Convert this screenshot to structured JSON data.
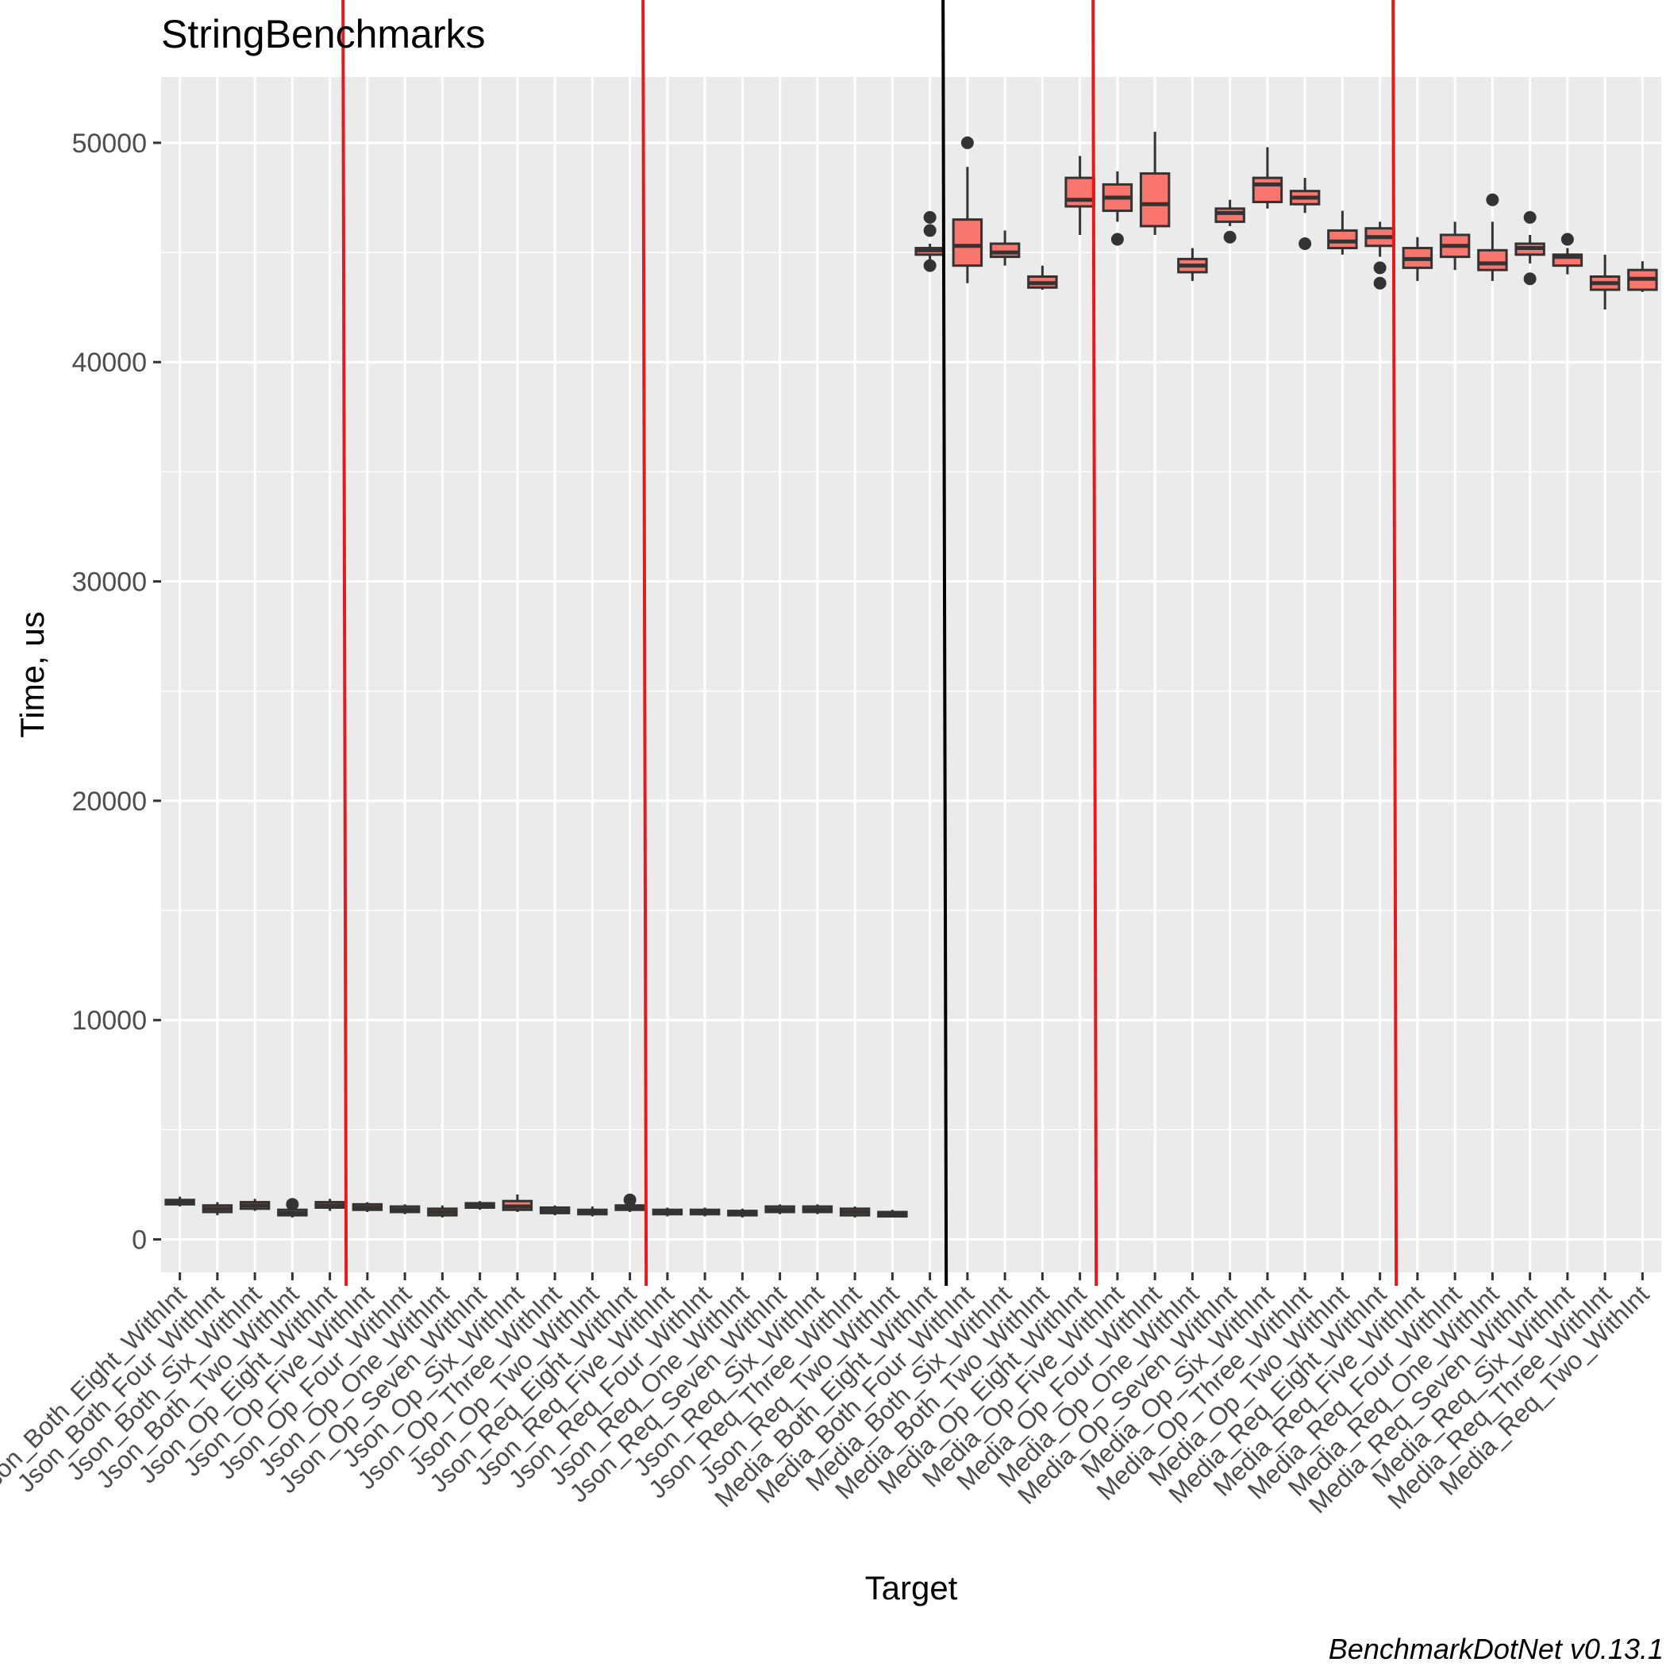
{
  "chart_data": {
    "type": "boxplot",
    "title": "StringBenchmarks",
    "xlabel": "Target",
    "ylabel": "Time, us",
    "caption": "BenchmarkDotNet v0.13.1",
    "ylim": [
      -1500,
      53000
    ],
    "yticks": [
      0,
      10000,
      20000,
      30000,
      40000,
      50000
    ],
    "grid": true,
    "legend": "none",
    "colors": {
      "panel": "#ebebeb",
      "grid": "#ffffff",
      "box_fill": "#f8766d",
      "box_line": "#333333",
      "annotation_red": "#e41a1c",
      "annotation_black": "#000000"
    },
    "categories": [
      "Json_Both_Eight_WithInt",
      "Json_Both_Four_WithInt",
      "Json_Both_Six_WithInt",
      "Json_Both_Two_WithInt",
      "Json_Op_Eight_WithInt",
      "Json_Op_Five_WithInt",
      "Json_Op_Four_WithInt",
      "Json_Op_One_WithInt",
      "Json_Op_Seven_WithInt",
      "Json_Op_Six_WithInt",
      "Json_Op_Three_WithInt",
      "Json_Op_Two_WithInt",
      "Json_Req_Eight_WithInt",
      "Json_Req_Five_WithInt",
      "Json_Req_Four_WithInt",
      "Json_Req_One_WithInt",
      "Json_Req_Seven_WithInt",
      "Json_Req_Six_WithInt",
      "Json_Req_Three_WithInt",
      "Json_Req_Two_WithInt",
      "Media_Both_Eight_WithInt",
      "Media_Both_Four_WithInt",
      "Media_Both_Six_WithInt",
      "Media_Both_Two_WithInt",
      "Media_Op_Eight_WithInt",
      "Media_Op_Five_WithInt",
      "Media_Op_Four_WithInt",
      "Media_Op_One_WithInt",
      "Media_Op_Seven_WithInt",
      "Media_Op_Six_WithInt",
      "Media_Op_Three_WithInt",
      "Media_Op_Two_WithInt",
      "Media_Req_Eight_WithInt",
      "Media_Req_Five_WithInt",
      "Media_Req_Four_WithInt",
      "Media_Req_One_WithInt",
      "Media_Req_Seven_WithInt",
      "Media_Req_Six_WithInt",
      "Media_Req_Three_WithInt",
      "Media_Req_Two_WithInt"
    ],
    "boxes": [
      {
        "min": 1500,
        "q1": 1600,
        "median": 1700,
        "q3": 1800,
        "max": 1950,
        "outliers": []
      },
      {
        "min": 1100,
        "q1": 1250,
        "median": 1400,
        "q3": 1550,
        "max": 1700,
        "outliers": []
      },
      {
        "min": 1300,
        "q1": 1400,
        "median": 1550,
        "q3": 1700,
        "max": 1850,
        "outliers": []
      },
      {
        "min": 1000,
        "q1": 1100,
        "median": 1200,
        "q3": 1350,
        "max": 1450,
        "outliers": [
          1600
        ]
      },
      {
        "min": 1300,
        "q1": 1450,
        "median": 1550,
        "q3": 1700,
        "max": 1850,
        "outliers": []
      },
      {
        "min": 1250,
        "q1": 1350,
        "median": 1450,
        "q3": 1600,
        "max": 1700,
        "outliers": []
      },
      {
        "min": 1150,
        "q1": 1250,
        "median": 1350,
        "q3": 1500,
        "max": 1600,
        "outliers": []
      },
      {
        "min": 1000,
        "q1": 1100,
        "median": 1250,
        "q3": 1400,
        "max": 1550,
        "outliers": []
      },
      {
        "min": 1350,
        "q1": 1450,
        "median": 1550,
        "q3": 1650,
        "max": 1750,
        "outliers": []
      },
      {
        "min": 1250,
        "q1": 1350,
        "median": 1500,
        "q3": 1750,
        "max": 2050,
        "outliers": []
      },
      {
        "min": 1100,
        "q1": 1200,
        "median": 1300,
        "q3": 1450,
        "max": 1550,
        "outliers": []
      },
      {
        "min": 1050,
        "q1": 1150,
        "median": 1250,
        "q3": 1350,
        "max": 1500,
        "outliers": []
      },
      {
        "min": 1250,
        "q1": 1350,
        "median": 1450,
        "q3": 1550,
        "max": 1650,
        "outliers": [
          1800
        ]
      },
      {
        "min": 1050,
        "q1": 1150,
        "median": 1250,
        "q3": 1350,
        "max": 1450,
        "outliers": []
      },
      {
        "min": 1050,
        "q1": 1150,
        "median": 1250,
        "q3": 1350,
        "max": 1450,
        "outliers": []
      },
      {
        "min": 1000,
        "q1": 1100,
        "median": 1200,
        "q3": 1300,
        "max": 1400,
        "outliers": []
      },
      {
        "min": 1150,
        "q1": 1250,
        "median": 1350,
        "q3": 1500,
        "max": 1600,
        "outliers": []
      },
      {
        "min": 1150,
        "q1": 1250,
        "median": 1350,
        "q3": 1500,
        "max": 1600,
        "outliers": []
      },
      {
        "min": 1000,
        "q1": 1100,
        "median": 1250,
        "q3": 1400,
        "max": 1500,
        "outliers": []
      },
      {
        "min": 1000,
        "q1": 1050,
        "median": 1150,
        "q3": 1250,
        "max": 1350,
        "outliers": []
      },
      {
        "min": 44600,
        "q1": 44900,
        "median": 45100,
        "q3": 45200,
        "max": 45400,
        "outliers": [
          46600,
          46000,
          44400
        ]
      },
      {
        "min": 43600,
        "q1": 44400,
        "median": 45300,
        "q3": 46500,
        "max": 48900,
        "outliers": [
          50000
        ]
      },
      {
        "min": 44400,
        "q1": 44800,
        "median": 45000,
        "q3": 45400,
        "max": 46000,
        "outliers": []
      },
      {
        "min": 43300,
        "q1": 43400,
        "median": 43600,
        "q3": 43900,
        "max": 44400,
        "outliers": []
      },
      {
        "min": 45800,
        "q1": 47100,
        "median": 47400,
        "q3": 48400,
        "max": 49400,
        "outliers": []
      },
      {
        "min": 46400,
        "q1": 46900,
        "median": 47500,
        "q3": 48100,
        "max": 48700,
        "outliers": [
          45600
        ]
      },
      {
        "min": 45800,
        "q1": 46200,
        "median": 47200,
        "q3": 48600,
        "max": 50500,
        "outliers": []
      },
      {
        "min": 43700,
        "q1": 44100,
        "median": 44400,
        "q3": 44700,
        "max": 45200,
        "outliers": []
      },
      {
        "min": 46200,
        "q1": 46400,
        "median": 46800,
        "q3": 47000,
        "max": 47400,
        "outliers": [
          45700
        ]
      },
      {
        "min": 47000,
        "q1": 47300,
        "median": 48100,
        "q3": 48400,
        "max": 49800,
        "outliers": []
      },
      {
        "min": 46800,
        "q1": 47200,
        "median": 47500,
        "q3": 47800,
        "max": 48400,
        "outliers": [
          45400
        ]
      },
      {
        "min": 44900,
        "q1": 45200,
        "median": 45500,
        "q3": 46000,
        "max": 46900,
        "outliers": []
      },
      {
        "min": 44800,
        "q1": 45300,
        "median": 45700,
        "q3": 46100,
        "max": 46400,
        "outliers": [
          44300,
          43600
        ]
      },
      {
        "min": 43700,
        "q1": 44300,
        "median": 44700,
        "q3": 45200,
        "max": 45700,
        "outliers": []
      },
      {
        "min": 44200,
        "q1": 44800,
        "median": 45300,
        "q3": 45800,
        "max": 46400,
        "outliers": []
      },
      {
        "min": 43700,
        "q1": 44200,
        "median": 44500,
        "q3": 45100,
        "max": 46400,
        "outliers": [
          47400
        ]
      },
      {
        "min": 44500,
        "q1": 44900,
        "median": 45200,
        "q3": 45400,
        "max": 45800,
        "outliers": [
          43800,
          46600
        ]
      },
      {
        "min": 44000,
        "q1": 44400,
        "median": 44800,
        "q3": 44900,
        "max": 45200,
        "outliers": [
          45600
        ]
      },
      {
        "min": 42400,
        "q1": 43300,
        "median": 43600,
        "q3": 43900,
        "max": 44900,
        "outliers": []
      },
      {
        "min": 43200,
        "q1": 43300,
        "median": 43800,
        "q3": 44200,
        "max": 44600,
        "outliers": []
      }
    ],
    "annotation_lines": [
      {
        "color": "red",
        "between_categories": [
          4,
          5
        ]
      },
      {
        "color": "red",
        "between_categories": [
          12,
          13
        ]
      },
      {
        "color": "black",
        "between_categories": [
          20,
          21
        ]
      },
      {
        "color": "red",
        "between_categories": [
          24,
          25
        ]
      },
      {
        "color": "red",
        "between_categories": [
          32,
          33
        ]
      }
    ]
  }
}
